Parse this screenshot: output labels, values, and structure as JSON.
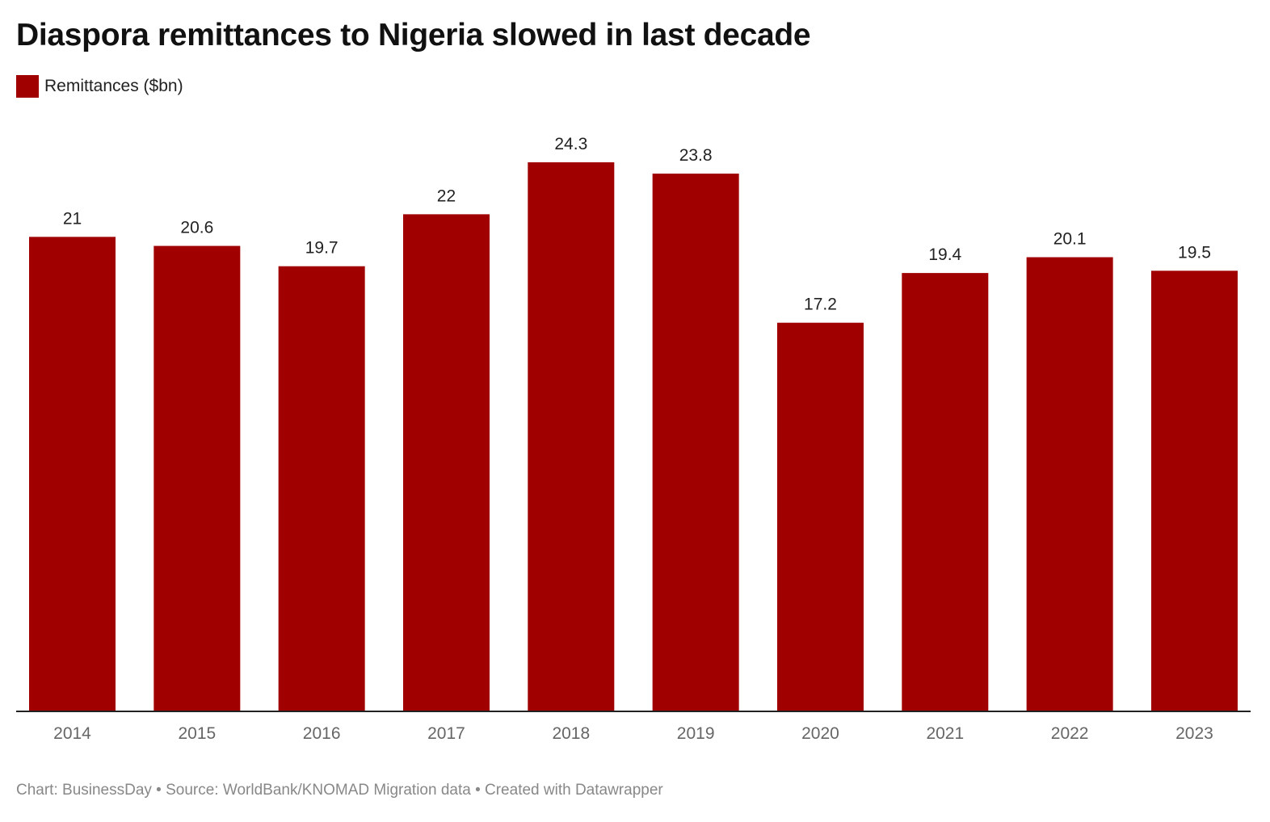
{
  "chart_data": {
    "type": "bar",
    "title": "Diaspora remittances to Nigeria slowed in last decade",
    "categories": [
      "2014",
      "2015",
      "2016",
      "2017",
      "2018",
      "2019",
      "2020",
      "2021",
      "2022",
      "2023"
    ],
    "series": [
      {
        "name": "Remittances ($bn)",
        "values": [
          21,
          20.6,
          19.7,
          22,
          24.3,
          23.8,
          17.2,
          19.4,
          20.1,
          19.5
        ],
        "color": "#a00000"
      }
    ],
    "ylim": [
      0,
      24.3
    ],
    "grid": false,
    "legend": "top-left",
    "data_labels": true
  },
  "footer": "Chart: BusinessDay • Source: WorldBank/KNOMAD Migration data • Created with Datawrapper"
}
